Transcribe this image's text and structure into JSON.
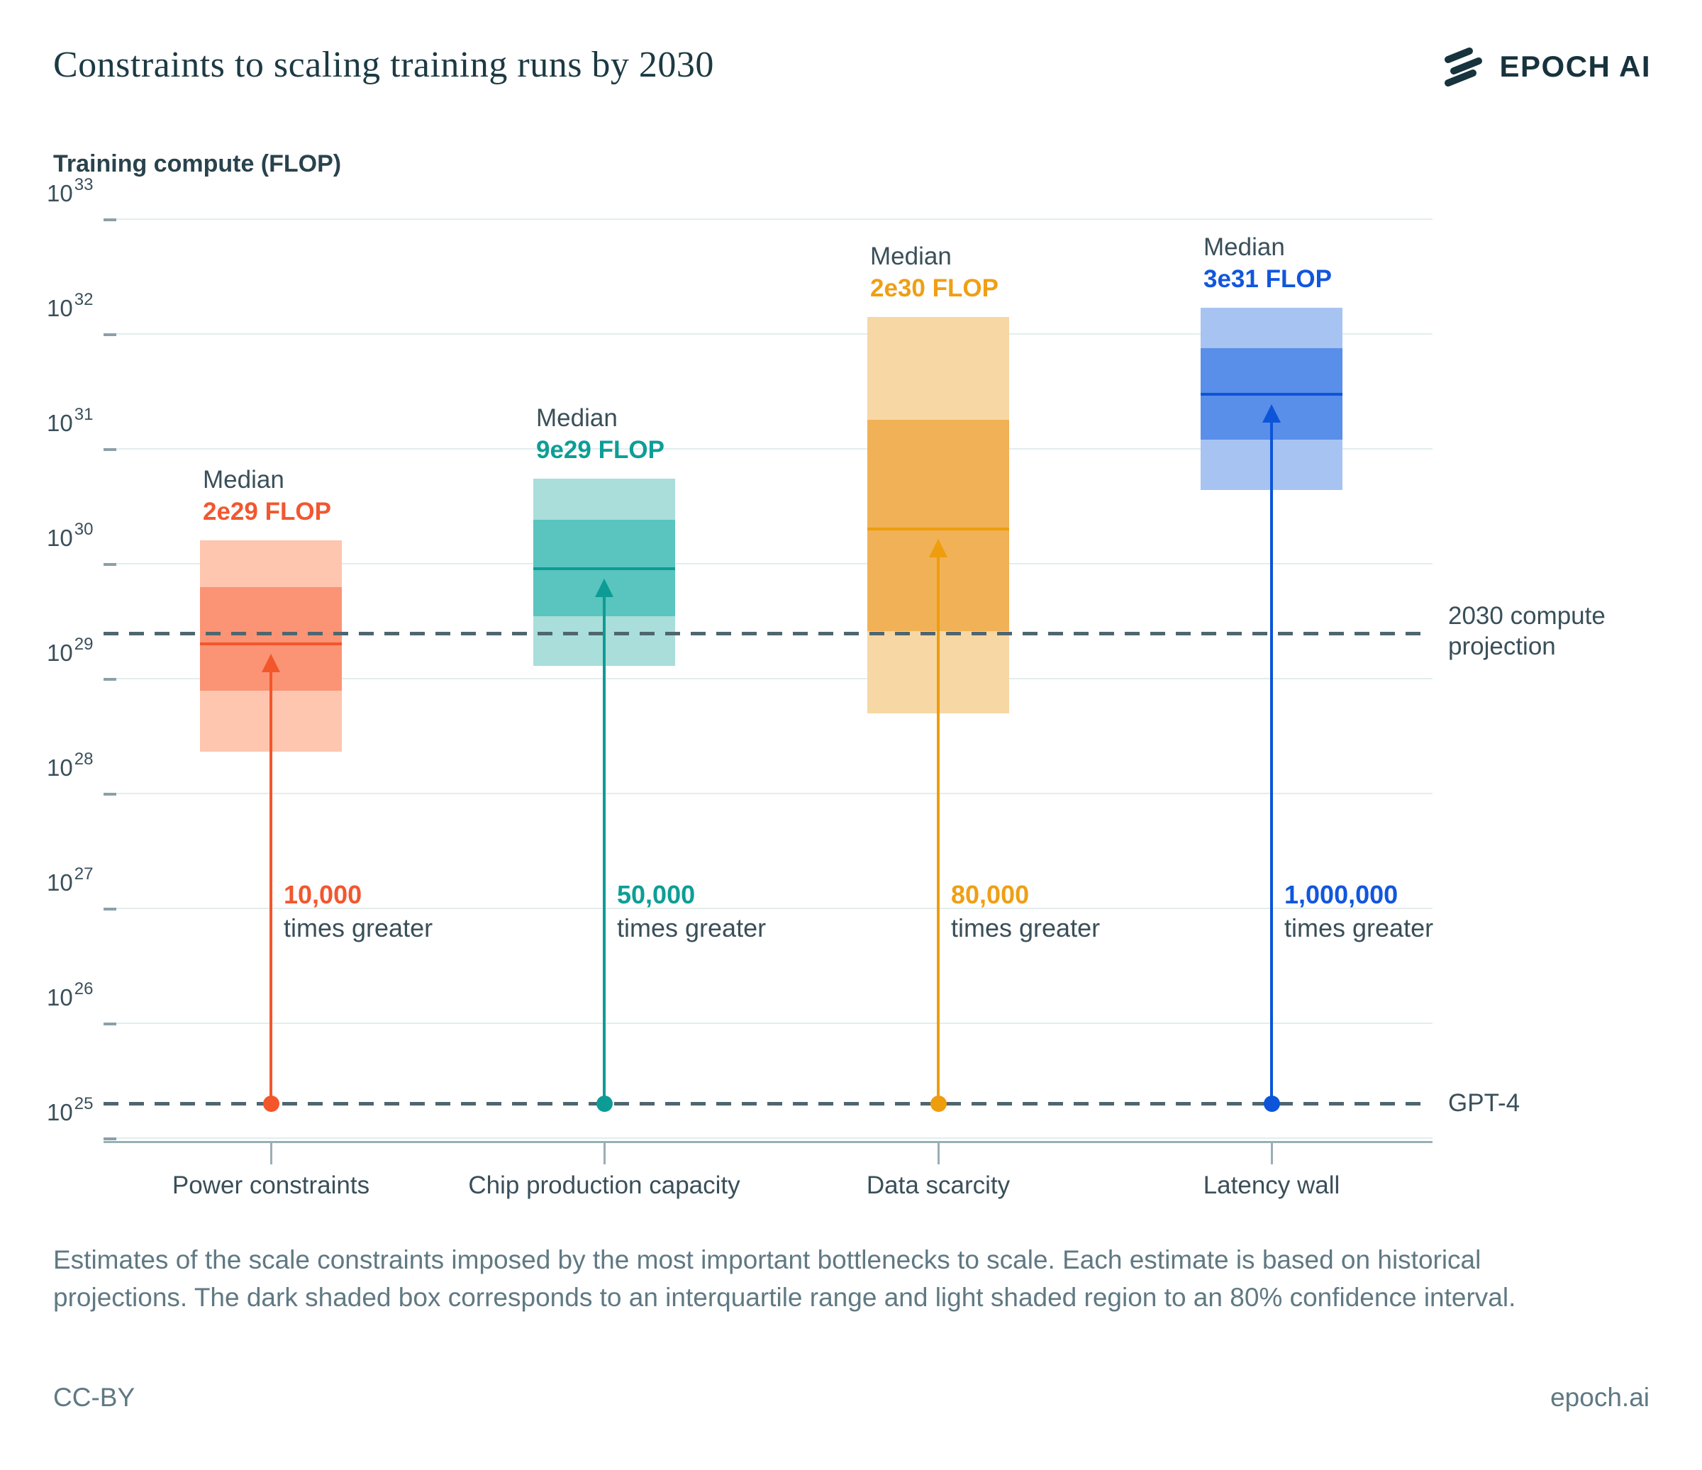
{
  "header": {
    "title": "Constraints to scaling training runs by 2030",
    "brand": "EPOCH AI"
  },
  "chart_data": {
    "type": "box",
    "title": "Constraints to scaling training runs by 2030",
    "ylabel": "Training compute (FLOP)",
    "y_axis": {
      "scale": "log10",
      "unit": "FLOP",
      "min": 1e+25,
      "max": 1e+33,
      "tick_exponents": [
        33,
        32,
        31,
        30,
        29,
        28,
        27,
        26,
        25
      ],
      "grid": true
    },
    "categories": [
      "Power constraints",
      "Chip production capacity",
      "Data scarcity",
      "Latency wall"
    ],
    "median_word": "Median",
    "times_greater_label": "times greater",
    "series": [
      {
        "name": "Power constraints",
        "median": 2e+29,
        "median_label": "2e29 FLOP",
        "iqr": [
          7.8e+28,
          6.3e+29
        ],
        "ci80": [
          2.3e+28,
          1.6e+30
        ],
        "multiplier_label": "10,000",
        "color": {
          "light": "#FEC5AF",
          "dark": "#FA9474",
          "line": "#F3562B",
          "text": "#F2572F"
        }
      },
      {
        "name": "Chip production capacity",
        "median": 9e+29,
        "median_label": "9e29 FLOP",
        "iqr": [
          3.5e+29,
          2.4e+30
        ],
        "ci80": [
          1.3e+29,
          5.5e+30
        ],
        "multiplier_label": "50,000",
        "color": {
          "light": "#A9DEDB",
          "dark": "#5AC4BE",
          "line": "#0C9C95",
          "text": "#0D9E96"
        }
      },
      {
        "name": "Data scarcity",
        "median": 2e+30,
        "median_label": "2e30 FLOP",
        "iqr": [
          2.6e+29,
          1.8e+31
        ],
        "ci80": [
          5e+28,
          1.4e+32
        ],
        "multiplier_label": "80,000",
        "color": {
          "light": "#F7D7A4",
          "dark": "#F1B156",
          "line": "#EE9D0D",
          "text": "#EF9F15"
        }
      },
      {
        "name": "Latency wall",
        "median": 3e+31,
        "median_label": "3e31 FLOP",
        "iqr": [
          1.2e+31,
          7.5e+31
        ],
        "ci80": [
          4.4e+30,
          1.7e+32
        ],
        "multiplier_label": "1,000,000",
        "color": {
          "light": "#A7C3F1",
          "dark": "#598EE9",
          "line": "#0D55D8",
          "text": "#1156DE"
        }
      }
    ],
    "reference_lines": [
      {
        "id": "projection-2030",
        "label": "2030 compute projection",
        "value": 2.5e+29
      },
      {
        "id": "gpt4",
        "label": "GPT-4",
        "value": 2e+25
      }
    ],
    "box_semantics": {
      "dark_box": "interquartile range",
      "light_box": "80% confidence interval"
    }
  },
  "caption": "Estimates of the scale constraints imposed by the most important bottlenecks to scale. Each estimate is based on historical projections. The dark shaded box corresponds to an interquartile range and light shaded region to an 80% confidence interval.",
  "footer": {
    "license": "CC-BY",
    "site": "epoch.ai"
  }
}
